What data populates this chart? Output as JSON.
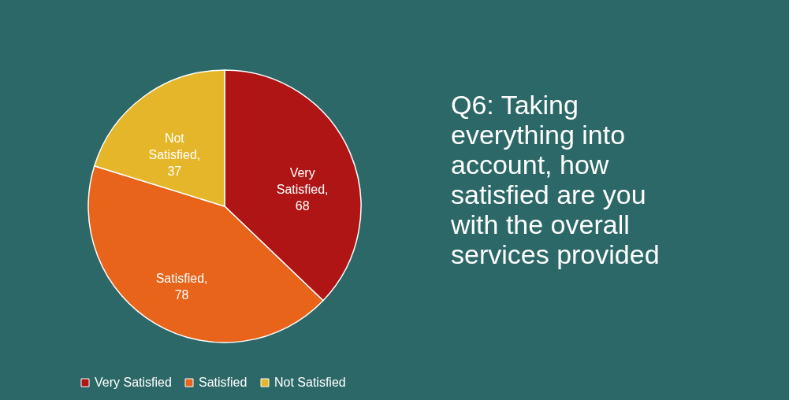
{
  "chart_data": {
    "type": "pie",
    "title": "Q6: Taking everything into account, how satisfied are you with the overall services provided",
    "categories": [
      "Very Satisfied",
      "Satisfied",
      "Not Satisfied"
    ],
    "values": [
      68,
      78,
      37
    ],
    "colors": [
      "#b01515",
      "#e8641a",
      "#e6b62a"
    ],
    "value_labels": [
      "Very Satisfied, 68",
      "Satisfied, 78",
      "Not Satisfied, 37"
    ],
    "legend": "bottom left"
  }
}
